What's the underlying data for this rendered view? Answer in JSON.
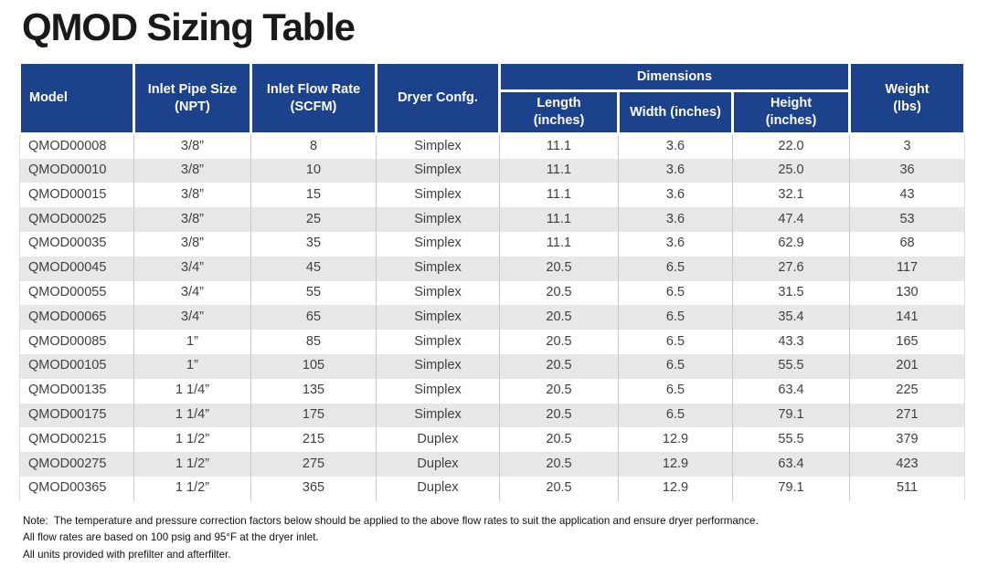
{
  "title": "QMOD Sizing Table",
  "table": {
    "columns": [
      "model",
      "pipe",
      "flow",
      "config",
      "length",
      "width",
      "height",
      "weight"
    ],
    "header": {
      "model": "Model",
      "pipe": "Inlet Pipe Size\n(NPT)",
      "flow": "Inlet Flow Rate\n(SCFM)",
      "config": "Dryer Confg.",
      "dimensions_group": "Dimensions",
      "length": "Length\n(inches)",
      "width": "Width (inches)",
      "height": "Height\n(inches)",
      "weight": "Weight\n(lbs)"
    },
    "rows": [
      {
        "model": "QMOD00008",
        "pipe": "3/8”",
        "flow": "8",
        "config": "Simplex",
        "length": "11.1",
        "width": "3.6",
        "height": "22.0",
        "weight": "3"
      },
      {
        "model": "QMOD00010",
        "pipe": "3/8”",
        "flow": "10",
        "config": "Simplex",
        "length": "11.1",
        "width": "3.6",
        "height": "25.0",
        "weight": "36"
      },
      {
        "model": "QMOD00015",
        "pipe": "3/8”",
        "flow": "15",
        "config": "Simplex",
        "length": "11.1",
        "width": "3.6",
        "height": "32.1",
        "weight": "43"
      },
      {
        "model": "QMOD00025",
        "pipe": "3/8”",
        "flow": "25",
        "config": "Simplex",
        "length": "11.1",
        "width": "3.6",
        "height": "47.4",
        "weight": "53"
      },
      {
        "model": "QMOD00035",
        "pipe": "3/8”",
        "flow": "35",
        "config": "Simplex",
        "length": "11.1",
        "width": "3.6",
        "height": "62.9",
        "weight": "68"
      },
      {
        "model": "QMOD00045",
        "pipe": "3/4”",
        "flow": "45",
        "config": "Simplex",
        "length": "20.5",
        "width": "6.5",
        "height": "27.6",
        "weight": "117"
      },
      {
        "model": "QMOD00055",
        "pipe": "3/4”",
        "flow": "55",
        "config": "Simplex",
        "length": "20.5",
        "width": "6.5",
        "height": "31.5",
        "weight": "130"
      },
      {
        "model": "QMOD00065",
        "pipe": "3/4”",
        "flow": "65",
        "config": "Simplex",
        "length": "20.5",
        "width": "6.5",
        "height": "35.4",
        "weight": "141"
      },
      {
        "model": "QMOD00085",
        "pipe": "1”",
        "flow": "85",
        "config": "Simplex",
        "length": "20.5",
        "width": "6.5",
        "height": "43.3",
        "weight": "165"
      },
      {
        "model": "QMOD00105",
        "pipe": "1”",
        "flow": "105",
        "config": "Simplex",
        "length": "20.5",
        "width": "6.5",
        "height": "55.5",
        "weight": "201"
      },
      {
        "model": "QMOD00135",
        "pipe": "1 1/4”",
        "flow": "135",
        "config": "Simplex",
        "length": "20.5",
        "width": "6.5",
        "height": "63.4",
        "weight": "225"
      },
      {
        "model": "QMOD00175",
        "pipe": "1 1/4”",
        "flow": "175",
        "config": "Simplex",
        "length": "20.5",
        "width": "6.5",
        "height": "79.1",
        "weight": "271"
      },
      {
        "model": "QMOD00215",
        "pipe": "1 1/2”",
        "flow": "215",
        "config": "Duplex",
        "length": "20.5",
        "width": "12.9",
        "height": "55.5",
        "weight": "379"
      },
      {
        "model": "QMOD00275",
        "pipe": "1 1/2”",
        "flow": "275",
        "config": "Duplex",
        "length": "20.5",
        "width": "12.9",
        "height": "63.4",
        "weight": "423"
      },
      {
        "model": "QMOD00365",
        "pipe": "1 1/2”",
        "flow": "365",
        "config": "Duplex",
        "length": "20.5",
        "width": "12.9",
        "height": "79.1",
        "weight": "511"
      }
    ]
  },
  "notes": [
    "Note:  The temperature and pressure correction factors below should be applied to the above flow rates to suit the application and ensure dryer performance.",
    "All flow rates are based on 100 psig and 95°F at the dryer inlet.",
    "All units provided with prefilter and afterfilter."
  ],
  "colors": {
    "header_blue": "#1b428a",
    "stripe_gray": "#e7e7e7",
    "body_text": "#3f3f3f",
    "title_text": "#1a1a1a"
  }
}
